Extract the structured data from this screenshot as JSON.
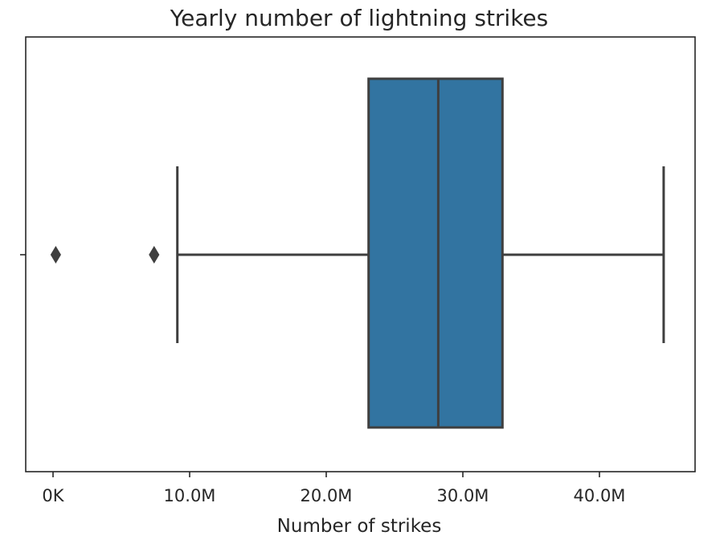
{
  "chart_data": {
    "type": "boxplot",
    "orientation": "horizontal",
    "title": "Yearly number of lightning strikes",
    "xlabel": "Number of strikes",
    "ylabel": "",
    "xlim": [
      -2000000,
      47000000
    ],
    "xticks": [
      {
        "value": 0,
        "label": "0K"
      },
      {
        "value": 10000000,
        "label": "10.0M"
      },
      {
        "value": 20000000,
        "label": "20.0M"
      },
      {
        "value": 30000000,
        "label": "30.0M"
      },
      {
        "value": 40000000,
        "label": "40.0M"
      }
    ],
    "box": {
      "whisker_low": 9100000,
      "q1": 23100000,
      "median": 28200000,
      "q3": 32900000,
      "whisker_high": 44700000
    },
    "outliers": [
      200000,
      7400000
    ],
    "grid": false,
    "legend": "none",
    "colors": {
      "box_fill": "#3274a1",
      "lines": "#3f3f3f",
      "frame": "#262626",
      "text": "#262626"
    }
  }
}
